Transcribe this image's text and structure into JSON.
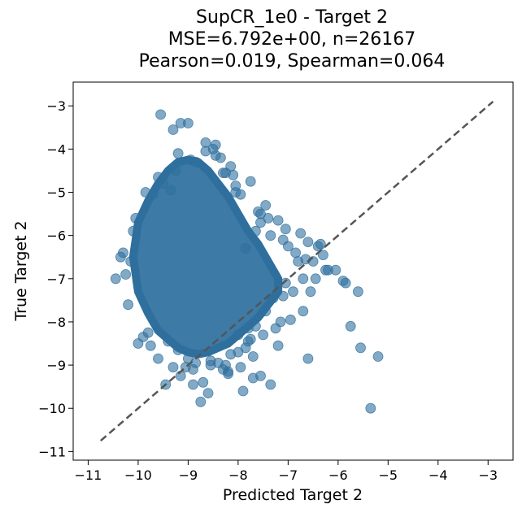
{
  "chart_data": {
    "type": "scatter",
    "title": [
      "SupCR_1e0 - Target 2",
      "MSE=6.792e+00, n=26167",
      "Pearson=0.019, Spearman=0.064"
    ],
    "xlabel": "Predicted Target 2",
    "ylabel": "True Target 2",
    "xlim": [
      -11.3,
      -2.5
    ],
    "ylim": [
      -11.2,
      -2.45
    ],
    "xticks": [
      -11,
      -10,
      -9,
      -8,
      -7,
      -6,
      -5,
      -4,
      -3
    ],
    "yticks": [
      -11,
      -10,
      -9,
      -8,
      -7,
      -6,
      -5,
      -4,
      -3
    ],
    "xtick_labels": [
      "−11",
      "−10",
      "−9",
      "−8",
      "−7",
      "−6",
      "−5",
      "−4",
      "−3"
    ],
    "ytick_labels": [
      "−11",
      "−10",
      "−9",
      "−8",
      "−7",
      "−6",
      "−5",
      "−4",
      "−3"
    ],
    "grid": false,
    "marker_color": "#2e6f9e",
    "reference_line": {
      "x": [
        -10.75,
        -2.9
      ],
      "y": [
        -10.75,
        -2.9
      ],
      "style": "dashed",
      "color": "#555555"
    },
    "dense_core": {
      "x": [
        -10.0,
        -9.8,
        -9.6,
        -9.4,
        -9.2,
        -9.0,
        -8.8,
        -8.6,
        -8.4,
        -8.2,
        -8.0,
        -7.8,
        -7.6,
        -7.4,
        -7.2,
        -7.2,
        -7.4,
        -7.6,
        -7.8,
        -8.0,
        -8.2,
        -8.4,
        -8.6,
        -8.8,
        -9.0,
        -9.2,
        -9.4,
        -9.6,
        -9.8,
        -10.0,
        -10.1
      ],
      "y": [
        -5.7,
        -5.2,
        -4.8,
        -4.5,
        -4.3,
        -4.25,
        -4.3,
        -4.5,
        -4.8,
        -5.1,
        -5.5,
        -5.9,
        -6.2,
        -6.6,
        -7.0,
        -7.3,
        -7.6,
        -7.9,
        -8.1,
        -8.3,
        -8.5,
        -8.6,
        -8.7,
        -8.75,
        -8.7,
        -8.6,
        -8.4,
        -8.2,
        -7.8,
        -7.3,
        -6.5
      ]
    },
    "points": {
      "x": [
        -9.55,
        -9.15,
        -9.3,
        -9.0,
        -8.65,
        -9.2,
        -8.95,
        -8.45,
        -8.85,
        -9.6,
        -9.85,
        -8.3,
        -8.1,
        -8.05,
        -7.95,
        -7.6,
        -7.4,
        -7.2,
        -7.05,
        -7.35,
        -7.55,
        -7.0,
        -6.85,
        -6.6,
        -6.65,
        -6.5,
        -6.3,
        -6.2,
        -6.05,
        -6.4,
        -6.45,
        -6.55,
        -6.9,
        -7.1,
        -7.3,
        -7.45,
        -6.7,
        -6.95,
        -7.15,
        -7.25,
        -7.5,
        -7.65,
        -7.8,
        -7.85,
        -7.75,
        -8.0,
        -8.15,
        -8.25,
        -8.4,
        -8.55,
        -8.7,
        -8.2,
        -7.9,
        -7.7,
        -7.35,
        -7.55,
        -6.6,
        -5.85,
        -5.6,
        -5.75,
        -5.55,
        -5.9,
        -5.35,
        -5.2,
        -7.2,
        -7.7,
        -7.95,
        -8.2,
        -8.6,
        -8.75,
        -8.9,
        -9.15,
        -9.3,
        -9.45,
        -9.0,
        -8.85,
        -10.45,
        -10.3,
        -10.2,
        -10.15,
        -10.25,
        -10.0,
        -10.05,
        -9.9,
        -9.8,
        -10.35,
        -10.1,
        -9.6,
        -9.75,
        -9.7,
        -9.5,
        -9.35,
        -9.25,
        -8.5,
        -8.35,
        -8.15,
        -7.75,
        -8.05,
        -8.45,
        -8.65,
        -8.25,
        -7.55,
        -7.45,
        -7.65,
        -7.85,
        -7.1,
        -6.75,
        -6.8,
        -6.35,
        -6.25,
        -6.7,
        -7.05,
        -8.55,
        -8.3,
        -9.2,
        -9.05,
        -8.9,
        -9.4,
        -8.0,
        -7.8
      ],
      "y": [
        -3.2,
        -3.4,
        -3.55,
        -3.4,
        -3.85,
        -4.1,
        -4.25,
        -4.15,
        -4.3,
        -4.65,
        -5.0,
        -4.55,
        -4.6,
        -4.85,
        -5.05,
        -5.45,
        -5.6,
        -5.65,
        -5.85,
        -6.0,
        -5.7,
        -6.25,
        -6.4,
        -6.15,
        -6.55,
        -6.6,
        -6.45,
        -6.8,
        -6.8,
        -6.25,
        -7.0,
        -7.3,
        -7.3,
        -7.4,
        -7.45,
        -7.75,
        -7.75,
        -7.95,
        -8.0,
        -8.15,
        -8.3,
        -8.1,
        -8.15,
        -8.6,
        -8.4,
        -8.3,
        -8.75,
        -9.0,
        -8.95,
        -9.0,
        -9.4,
        -9.2,
        -9.6,
        -9.3,
        -9.45,
        -9.25,
        -8.85,
        -7.1,
        -7.3,
        -8.1,
        -8.6,
        -7.05,
        -10.0,
        -8.8,
        -8.55,
        -8.8,
        -9.05,
        -9.15,
        -9.65,
        -9.85,
        -9.45,
        -9.25,
        -9.05,
        -9.45,
        -8.85,
        -8.95,
        -7.0,
        -6.4,
        -7.6,
        -6.6,
        -6.9,
        -8.5,
        -5.6,
        -8.35,
        -8.25,
        -6.5,
        -5.9,
        -8.85,
        -8.55,
        -5.05,
        -4.8,
        -4.95,
        -4.5,
        -4.0,
        -4.2,
        -4.4,
        -4.75,
        -5.0,
        -3.9,
        -4.05,
        -4.55,
        -5.5,
        -5.3,
        -5.9,
        -6.3,
        -6.1,
        -5.95,
        -6.6,
        -6.2,
        -6.8,
        -7.0,
        -7.1,
        -8.9,
        -9.1,
        -8.65,
        -9.05,
        -9.1,
        -8.45,
        -8.7,
        -8.45
      ]
    }
  }
}
